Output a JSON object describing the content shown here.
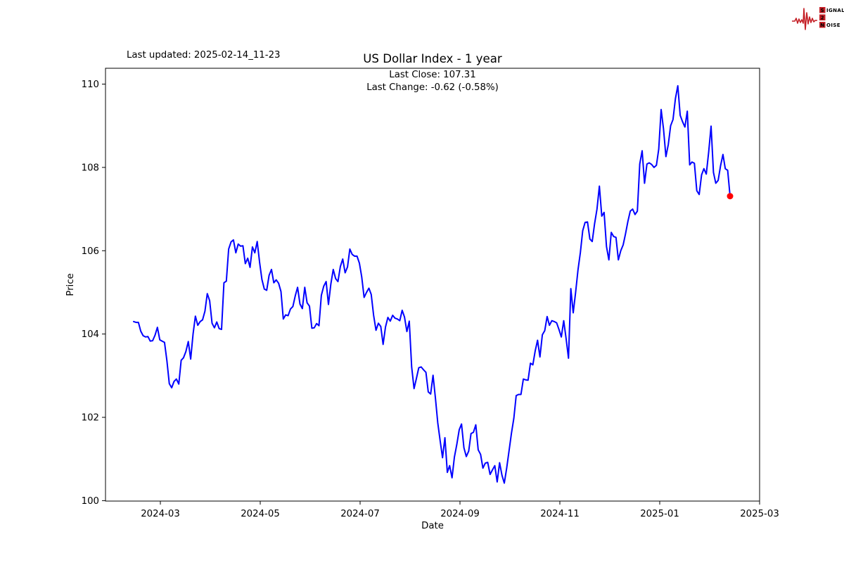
{
  "header": {
    "last_updated": "Last updated: 2025-02-14_11-23",
    "logo": {
      "word1_initial": "S",
      "word1_rest": "IGNAL",
      "word2": "2",
      "word3_initial": "N",
      "word3_rest": "OISE",
      "accent_color": "#c41f26"
    }
  },
  "chart_data": {
    "type": "line",
    "title": "US Dollar Index - 1 year",
    "annotation_line1": "Last Close: 107.31",
    "annotation_line2": "Last Change: -0.62 (-0.58%)",
    "xlabel": "Date",
    "ylabel": "Price",
    "x_tick_labels": [
      "2024-03",
      "2024-05",
      "2024-07",
      "2024-09",
      "2024-11",
      "2025-01",
      "2025-03"
    ],
    "y_tick_values": [
      100,
      102,
      104,
      106,
      108,
      110
    ],
    "ylim": [
      99.99,
      110.38
    ],
    "x_range": {
      "start": "2024-02-14",
      "end": "2025-02-13"
    },
    "grid": false,
    "legend": "none",
    "line_color": "#0000ff",
    "last_point_color": "#ff0000",
    "last_close": 107.31,
    "last_change": -0.62,
    "last_change_pct": "-0.58%",
    "series": [
      {
        "name": "US Dollar Index",
        "values": [
          104.3,
          104.28,
          104.28,
          104.07,
          103.96,
          103.93,
          103.94,
          103.83,
          103.84,
          103.97,
          104.16,
          103.86,
          103.83,
          103.8,
          103.36,
          102.81,
          102.71,
          102.86,
          102.92,
          102.8,
          103.37,
          103.43,
          103.58,
          103.82,
          103.4,
          104.0,
          104.43,
          104.21,
          104.3,
          104.34,
          104.55,
          104.97,
          104.8,
          104.26,
          104.15,
          104.29,
          104.13,
          104.11,
          105.23,
          105.27,
          106.04,
          106.21,
          106.26,
          105.95,
          106.16,
          106.11,
          106.12,
          105.69,
          105.82,
          105.6,
          106.09,
          105.95,
          106.22,
          105.72,
          105.31,
          105.08,
          105.05,
          105.41,
          105.55,
          105.23,
          105.3,
          105.22,
          105.02,
          104.36,
          104.46,
          104.44,
          104.6,
          104.66,
          104.91,
          105.12,
          104.72,
          104.61,
          105.12,
          104.75,
          104.67,
          104.14,
          104.15,
          104.25,
          104.2,
          104.93,
          105.15,
          105.26,
          104.71,
          105.2,
          105.55,
          105.33,
          105.26,
          105.62,
          105.8,
          105.47,
          105.61,
          106.04,
          105.91,
          105.87,
          105.87,
          105.7,
          105.37,
          104.88,
          105.0,
          105.1,
          104.95,
          104.45,
          104.09,
          104.26,
          104.18,
          103.75,
          104.17,
          104.4,
          104.31,
          104.45,
          104.38,
          104.36,
          104.32,
          104.57,
          104.41,
          104.06,
          104.31,
          103.21,
          102.69,
          102.93,
          103.19,
          103.21,
          103.14,
          103.08,
          102.61,
          102.56,
          103.01,
          102.46,
          101.87,
          101.44,
          101.03,
          101.51,
          100.68,
          100.84,
          100.55,
          101.05,
          101.35,
          101.7,
          101.84,
          101.27,
          101.06,
          101.19,
          101.61,
          101.64,
          101.82,
          101.22,
          101.11,
          100.78,
          100.9,
          100.92,
          100.63,
          100.74,
          100.84,
          100.45,
          100.91,
          100.61,
          100.42,
          100.78,
          101.2,
          101.62,
          101.98,
          102.52,
          102.55,
          102.55,
          102.92,
          102.9,
          102.89,
          103.3,
          103.26,
          103.6,
          103.85,
          103.45,
          103.98,
          104.08,
          104.42,
          104.21,
          104.32,
          104.3,
          104.27,
          104.11,
          103.93,
          104.32,
          103.89,
          103.42,
          105.09,
          104.51,
          105.0,
          105.54,
          105.96,
          106.48,
          106.68,
          106.69,
          106.28,
          106.22,
          106.65,
          107.0,
          107.55,
          106.83,
          106.92,
          106.1,
          105.78,
          106.44,
          106.34,
          106.32,
          105.78,
          106.0,
          106.14,
          106.4,
          106.7,
          106.95,
          107.0,
          106.87,
          106.95,
          108.08,
          108.4,
          107.62,
          108.08,
          108.11,
          108.07,
          108.0,
          108.05,
          108.44,
          109.39,
          108.92,
          108.26,
          108.55,
          109.0,
          109.15,
          109.65,
          109.96,
          109.25,
          109.1,
          108.97,
          109.35,
          108.06,
          108.13,
          108.1,
          107.44,
          107.35,
          107.82,
          107.97,
          107.84,
          108.37,
          108.99,
          107.88,
          107.62,
          107.69,
          108.04,
          108.31,
          107.97,
          107.93,
          107.31
        ]
      }
    ]
  }
}
